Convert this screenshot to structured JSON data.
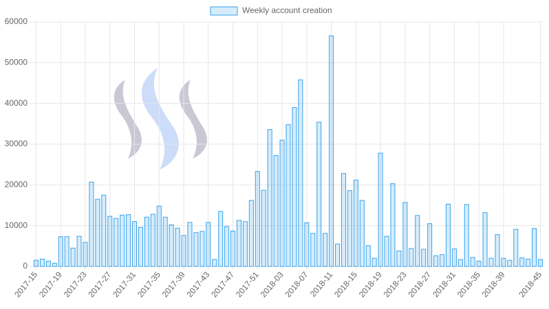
{
  "chart_data": {
    "type": "bar",
    "series": [
      {
        "name": "Weekly account creation",
        "color": "#36a2eb",
        "fill": "rgba(54,162,235,0.2)",
        "values": [
          1500,
          1800,
          1300,
          800,
          7300,
          7300,
          4500,
          7400,
          5900,
          20700,
          16500,
          17500,
          12300,
          11800,
          12600,
          12700,
          11000,
          9600,
          12100,
          12800,
          14800,
          12100,
          10200,
          9400,
          7600,
          10800,
          8300,
          8600,
          10800,
          1700,
          13500,
          9800,
          8700,
          11300,
          11000,
          16200,
          23300,
          18700,
          33600,
          27200,
          31000,
          34800,
          39000,
          45800,
          10700,
          8100,
          35400,
          8100,
          56600,
          5500,
          22800,
          18600,
          21200,
          16200,
          5100,
          2000,
          27800,
          7400,
          20300,
          3800,
          15700,
          4400,
          12500,
          4200,
          10500,
          2600,
          2900,
          15300,
          4300,
          1700,
          15200,
          2200,
          1300,
          13200,
          2000,
          7800,
          2000,
          1500,
          9100,
          2100,
          1800,
          9300,
          1700
        ]
      }
    ],
    "categories": [
      "2017-15",
      null,
      null,
      null,
      "2017-19",
      null,
      null,
      null,
      "2017-23",
      null,
      null,
      null,
      "2017-27",
      null,
      null,
      null,
      "2017-31",
      null,
      null,
      null,
      "2017-35",
      null,
      null,
      null,
      "2017-39",
      null,
      null,
      null,
      "2017-43",
      null,
      null,
      null,
      "2017-47",
      null,
      null,
      null,
      "2017-51",
      null,
      null,
      null,
      "2018-03",
      null,
      null,
      null,
      "2018-07",
      null,
      null,
      null,
      "2018-11",
      null,
      null,
      null,
      "2018-15",
      null,
      null,
      null,
      "2018-19",
      null,
      null,
      null,
      "2018-23",
      null,
      null,
      null,
      "2018-27",
      null,
      null,
      null,
      "2018-31",
      null,
      null,
      null,
      "2018-35",
      null,
      null,
      null,
      "2018-39",
      null,
      null,
      null,
      null,
      null,
      "2018-45"
    ],
    "ylim": [
      0,
      60000
    ],
    "yticks": [
      0,
      10000,
      20000,
      30000,
      40000,
      50000,
      60000
    ],
    "grid": true
  }
}
